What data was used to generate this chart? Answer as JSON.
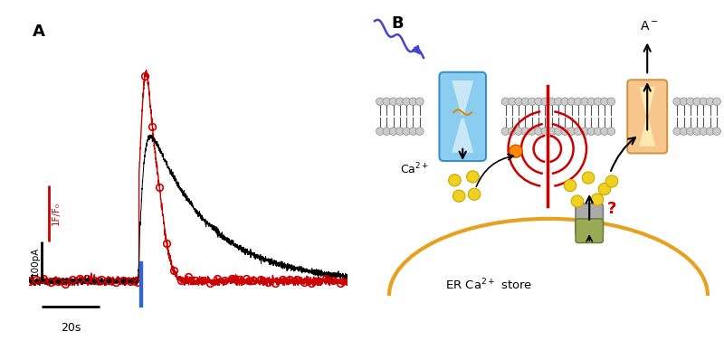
{
  "fig_width": 8.0,
  "fig_height": 3.87,
  "bg_color": "#ffffff",
  "panel_A": {
    "label": "A",
    "black_trace_color": "#000000",
    "red_trace_color": "#cc0000",
    "blue_stim_color": "#3366cc",
    "scale_label_black": "100pA",
    "scale_label_red": "1F/F₀",
    "time_label": "20s"
  },
  "panel_B": {
    "label": "B",
    "membrane_head_color": "#cccccc",
    "membrane_head_ec": "#888888",
    "membrane_tail_color": "#555555",
    "channel_blue_fc": "#7ec8f0",
    "channel_blue_ec": "#2288bb",
    "channel_orange_fc": "#f5c080",
    "channel_orange_ec": "#cc8830",
    "channel_gray_fc": "#aaaaaa",
    "channel_gray_ec": "#777777",
    "channel_green_fc": "#99aa55",
    "channel_green_ec": "#667733",
    "er_arc_color": "#e8a020",
    "ca_ion_fc": "#f0d020",
    "ca_ion_ec": "#c8a800",
    "wave_color": "#cc0000",
    "arrow_color": "#000000",
    "blue_light_color": "#4444cc",
    "chromophore_color": "#dd8800",
    "glow_fc": "#ff8800",
    "glow_ec": "#cc5500",
    "qmark_color": "#cc0000"
  }
}
